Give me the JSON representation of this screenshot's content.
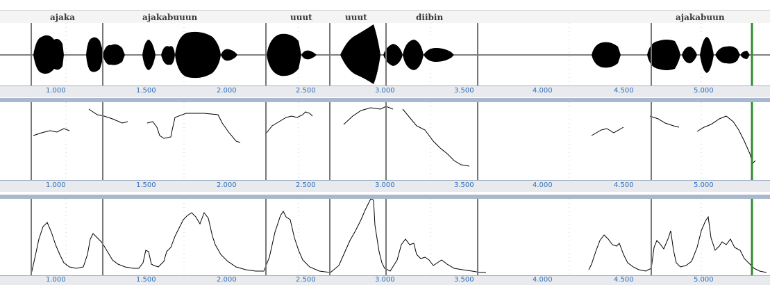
{
  "word_labels": [
    "ajaka",
    "ajakabuuun",
    "uuut",
    "uuut",
    "diibin",
    "ajakabuun"
  ],
  "time_axis_ticks": [
    "1.000",
    "1.500",
    "2.000",
    "2.500",
    "3.000",
    "3.500",
    "4.000",
    "4.500",
    "5.000"
  ],
  "panels": [
    "waveform-panel",
    "pitch-panel",
    "intensity-panel"
  ],
  "cursor_color": "#2e8b2e",
  "axis_label_color": "#2d6fb7"
}
